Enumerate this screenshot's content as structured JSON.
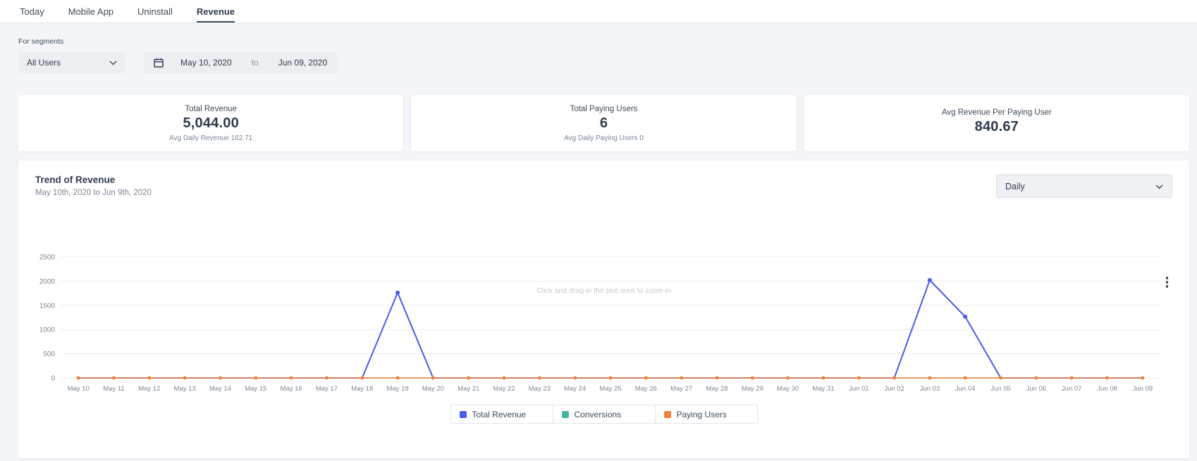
{
  "tabs": [
    {
      "label": "Today"
    },
    {
      "label": "Mobile App"
    },
    {
      "label": "Uninstall"
    },
    {
      "label": "Revenue"
    }
  ],
  "filters": {
    "for_segments_label": "For segments",
    "segment_value": "All Users",
    "date_from": "May 10, 2020",
    "to_word": "to",
    "date_to": "Jun 09, 2020"
  },
  "stats": [
    {
      "title": "Total Revenue",
      "value": "5,044.00",
      "subtitle": "Avg Daily Revenue 162.71"
    },
    {
      "title": "Total Paying Users",
      "value": "6",
      "subtitle": "Avg Daily Paying Users 0"
    },
    {
      "title": "Avg Revenue Per Paying User",
      "value": "840.67",
      "subtitle": ""
    }
  ],
  "chart": {
    "title": "Trend of Revenue",
    "subtitle": "May 10th, 2020 to Jun 9th, 2020",
    "interval_value": "Daily",
    "hint": "Click and drag in the plot area to zoom in"
  },
  "chart_data": {
    "type": "line",
    "title": "Trend of Revenue",
    "xlabel": "",
    "ylabel": "",
    "ylim": [
      0,
      2500
    ],
    "yticks": [
      0,
      500,
      1000,
      1500,
      2000,
      2500
    ],
    "grid": true,
    "legend_position": "bottom",
    "categories": [
      "May 10",
      "May 11",
      "May 12",
      "May 13",
      "May 14",
      "May 15",
      "May 16",
      "May 17",
      "May 18",
      "May 19",
      "May 20",
      "May 21",
      "May 22",
      "May 23",
      "May 24",
      "May 25",
      "May 26",
      "May 27",
      "May 28",
      "May 29",
      "May 30",
      "May 31",
      "Jun 01",
      "Jun 02",
      "Jun 03",
      "Jun 04",
      "Jun 05",
      "Jun 06",
      "Jun 07",
      "Jun 08",
      "Jun 09"
    ],
    "series": [
      {
        "name": "Total Revenue",
        "color": "#4a5ce8",
        "stroke_width": 2,
        "markers": "nonzero",
        "values": [
          0,
          0,
          0,
          0,
          0,
          0,
          0,
          0,
          0,
          1760,
          0,
          0,
          0,
          0,
          0,
          0,
          0,
          0,
          0,
          0,
          0,
          0,
          0,
          0,
          2020,
          1264,
          0,
          0,
          0,
          0,
          0
        ]
      },
      {
        "name": "Conversions",
        "color": "#45b5a6",
        "stroke_width": 1.5,
        "markers": "none",
        "values": [
          0,
          0,
          0,
          0,
          0,
          0,
          0,
          0,
          0,
          0,
          0,
          0,
          0,
          0,
          0,
          0,
          0,
          0,
          0,
          0,
          0,
          0,
          0,
          0,
          0,
          0,
          0,
          0,
          0,
          0,
          0
        ]
      },
      {
        "name": "Paying Users",
        "color": "#f0813f",
        "stroke_width": 1.5,
        "markers": "all",
        "values": [
          0,
          0,
          0,
          0,
          0,
          0,
          0,
          0,
          0,
          0,
          0,
          0,
          0,
          0,
          0,
          0,
          0,
          0,
          0,
          0,
          0,
          0,
          0,
          0,
          0,
          0,
          0,
          0,
          0,
          0,
          0
        ]
      }
    ]
  }
}
